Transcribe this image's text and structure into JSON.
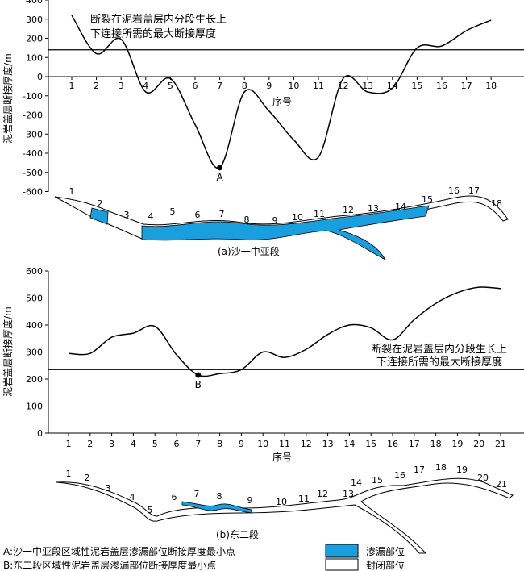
{
  "chart_data": [
    {
      "type": "line",
      "ylabel": "泥岩盖层断接厚度/m",
      "xlabel": "序号",
      "ylim": [
        -600,
        400
      ],
      "yticks": [
        400,
        300,
        200,
        100,
        0,
        -100,
        -200,
        -300,
        -400,
        -500,
        -600
      ],
      "x": [
        1,
        2,
        3,
        4,
        5,
        6,
        7,
        8,
        9,
        10,
        11,
        12,
        13,
        14,
        15,
        16,
        17,
        18
      ],
      "values": [
        320,
        120,
        195,
        -80,
        -10,
        -250,
        -475,
        -80,
        -180,
        -330,
        -420,
        -10,
        -80,
        -60,
        150,
        160,
        240,
        295
      ],
      "threshold": 140,
      "threshold_label_line1": "断裂在泥岩盖层内分段生长上",
      "threshold_label_line2": "下连接所需的最大断接厚度",
      "min_point_label": "A",
      "min_point": {
        "x": 7,
        "y": -475
      },
      "caption": "(a)沙一中亚段",
      "section_labels": [
        "1",
        "2",
        "3",
        "4",
        "5",
        "6",
        "7",
        "8",
        "9",
        "10",
        "11",
        "12",
        "13",
        "14",
        "15",
        "16",
        "17",
        "18"
      ],
      "leak_segments": [
        "2",
        "4-15"
      ]
    },
    {
      "type": "line",
      "ylabel": "泥岩盖层断接厚度/m",
      "xlabel": "序号",
      "ylim": [
        0,
        600
      ],
      "yticks": [
        600,
        500,
        400,
        300,
        200,
        100,
        0
      ],
      "x": [
        1,
        2,
        3,
        4,
        5,
        6,
        7,
        8,
        9,
        10,
        11,
        12,
        13,
        14,
        15,
        16,
        17,
        18,
        19,
        20,
        21
      ],
      "values": [
        295,
        295,
        355,
        370,
        395,
        290,
        215,
        220,
        235,
        300,
        280,
        310,
        365,
        400,
        390,
        345,
        420,
        480,
        520,
        540,
        535
      ],
      "threshold": 235,
      "threshold_label_line1": "断裂在泥岩盖层内分段生长上",
      "threshold_label_line2": "下连接所需的最大断接厚度",
      "min_point_label": "B",
      "min_point": {
        "x": 7,
        "y": 215
      },
      "caption": "(b)东二段",
      "section_labels": [
        "1",
        "2",
        "3",
        "4",
        "5",
        "6",
        "7",
        "8",
        "9",
        "10",
        "11",
        "12",
        "13",
        "14",
        "15",
        "16",
        "17",
        "18",
        "19",
        "20",
        "21"
      ],
      "leak_segments": [
        "7-9"
      ]
    }
  ],
  "legend": {
    "note_a": "A:沙一中亚段区域性泥岩盖层渗漏部位断接厚度最小点",
    "note_b": "B:东二段区域性泥岩盖层渗漏部位断接厚度最小点",
    "leak_label": "渗漏部位",
    "sealed_label": "封闭部位",
    "leak_color": "#1a9fde",
    "sealed_color": "#ffffff"
  }
}
